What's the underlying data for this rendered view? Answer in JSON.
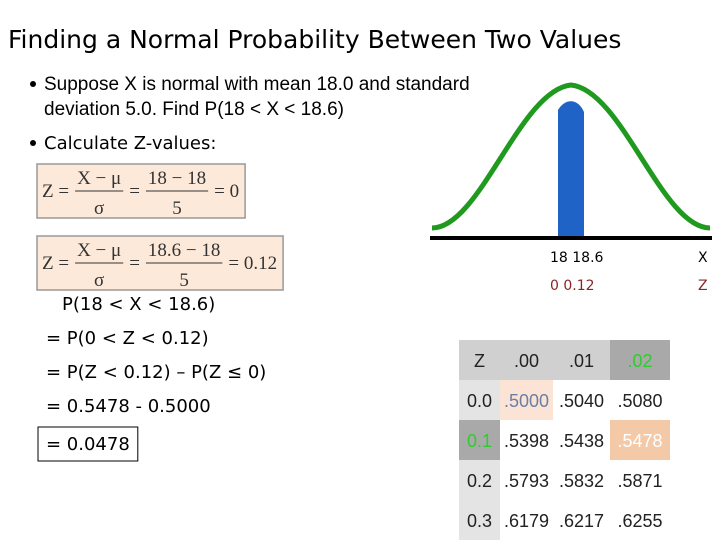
{
  "title": "Finding a Normal Probability Between Two Values",
  "bullets": [
    "Suppose  X  is normal with mean 18.0 and standard",
    "deviation 5.0.  Find P(18 < X < 18.6)",
    "Calculate Z-values:"
  ],
  "formulas": [
    {
      "parts": [
        "Z =",
        {
          "num": "X − μ",
          "den": "σ"
        },
        "=",
        {
          "num": "18 − 18",
          "den": "5"
        },
        "= 0"
      ]
    },
    {
      "parts": [
        "Z =",
        {
          "num": "X − μ",
          "den": "σ"
        },
        "=",
        {
          "num": "18.6 − 18",
          "den": "5"
        },
        "= 0.12"
      ]
    }
  ],
  "calculation": [
    "P(18 < X < 18.6)",
    "= P(0 < Z < 0.12)",
    "= P(Z < 0.12) – P(Z ≤ 0)",
    "= 0.5478 - 0.5000",
    "= 0.0478"
  ],
  "curve_labels": {
    "x_values": "18  18.6",
    "x_axis": "X",
    "z_values": "0  0.12",
    "z_axis": "Z"
  },
  "table": {
    "header": [
      "Z",
      ".00",
      ".01",
      ".02"
    ],
    "rows": [
      [
        "0.0",
        ".5000",
        ".5040",
        ".5080"
      ],
      [
        "0.1",
        ".5398",
        ".5438",
        ".5478"
      ],
      [
        "0.2",
        ".5793",
        ".5832",
        ".5871"
      ],
      [
        "0.3",
        ".6179",
        ".6217",
        ".6255"
      ]
    ]
  }
}
